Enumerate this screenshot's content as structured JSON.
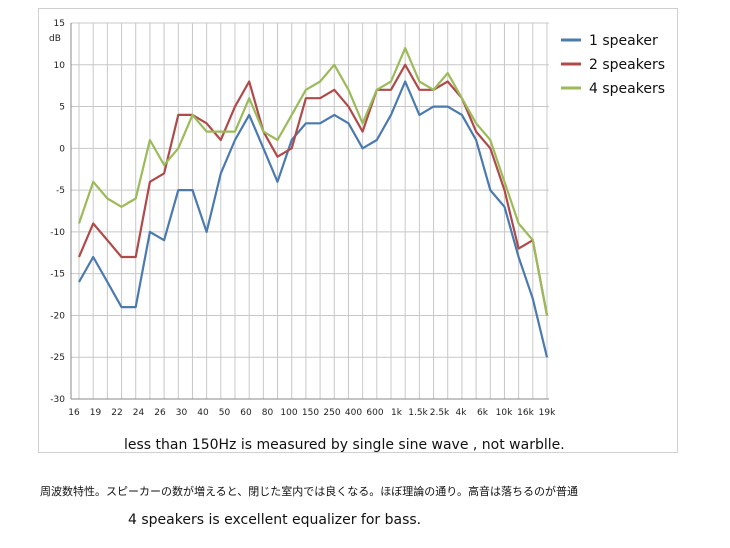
{
  "chart_data": {
    "type": "line",
    "xlabel": "",
    "ylabel": "dB",
    "ylim": [
      -30,
      15
    ],
    "yticks": [
      15,
      10,
      5,
      0,
      -5,
      -10,
      -15,
      -20,
      -25,
      -30
    ],
    "grid": true,
    "legend_position": "top-right",
    "x_tick_labels": [
      "16",
      "19",
      "22",
      "24",
      "26",
      "30",
      "40",
      "50",
      "60",
      "80",
      "100",
      "150",
      "250",
      "400",
      "600",
      "1k",
      "1.5k",
      "2.5k",
      "4k",
      "6k",
      "10k",
      "16k",
      "19k"
    ],
    "note": "less than 150Hz is measured by single sine wave , not warblle.",
    "series": [
      {
        "name": "1 speaker",
        "color": "#4a7ab0",
        "values": [
          -16,
          -13,
          -16,
          -19,
          -19,
          -10,
          -11,
          -5,
          -5,
          -10,
          -3,
          1,
          4,
          0,
          -4,
          1,
          3,
          3,
          4,
          3,
          0,
          1,
          4,
          8,
          4,
          5,
          5,
          4,
          1,
          -5,
          -7,
          -13,
          -18,
          -25
        ]
      },
      {
        "name": "2 speakers",
        "color": "#b04a4a",
        "values": [
          -13,
          -9,
          -11,
          -13,
          -13,
          -4,
          -3,
          4,
          4,
          3,
          1,
          5,
          8,
          2,
          -1,
          0,
          6,
          6,
          7,
          5,
          2,
          7,
          7,
          10,
          7,
          7,
          8,
          6,
          2,
          0,
          -5,
          -12,
          -11,
          -20
        ]
      },
      {
        "name": "4 speakers",
        "color": "#9bbb59",
        "values": [
          -9,
          -4,
          -6,
          -7,
          -6,
          1,
          -2,
          0,
          4,
          2,
          2,
          2,
          6,
          2,
          1,
          4,
          7,
          8,
          10,
          7,
          3,
          7,
          8,
          12,
          8,
          7,
          9,
          6,
          3,
          1,
          -4,
          -9,
          -11,
          -20
        ]
      }
    ]
  },
  "captions": {
    "japanese": "周波数特性。スピーカーの数が増えると、閉じた室内では良くなる。ほぼ理論の通り。高音は落ちるのが普通",
    "english": "4 speakers is excellent equalizer for bass."
  }
}
